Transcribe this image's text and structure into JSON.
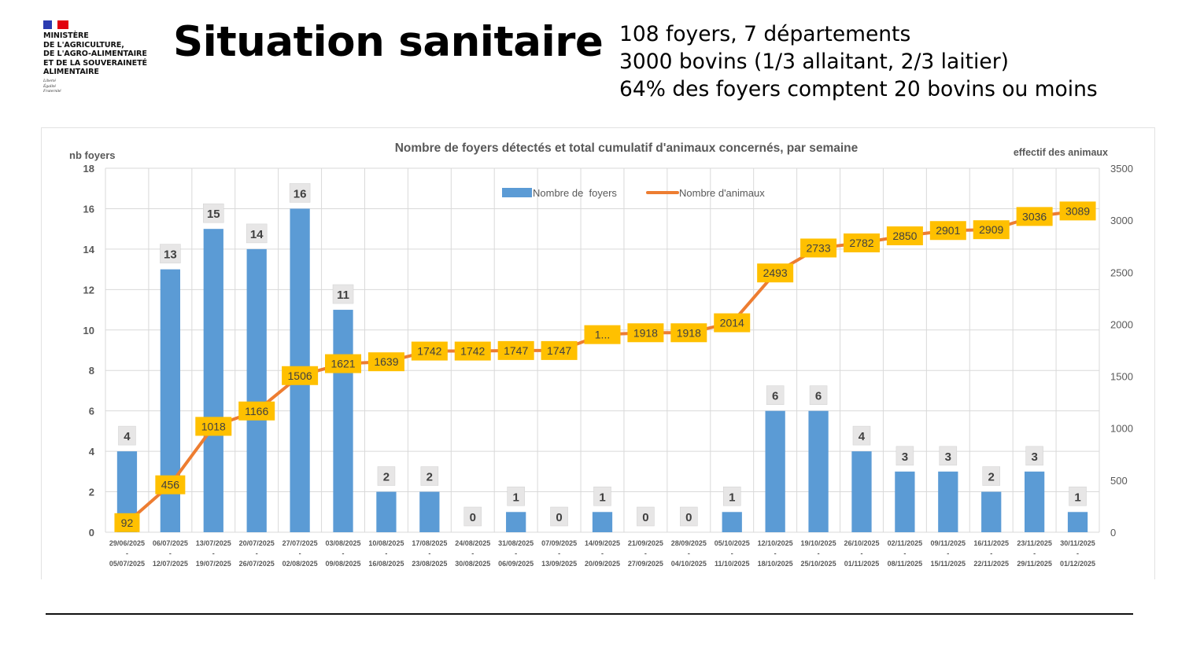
{
  "header": {
    "ministry_lines": [
      "MINISTÈRE",
      "DE L'AGRICULTURE,",
      "DE L'AGRO-ALIMENTAIRE",
      "ET DE LA SOUVERAINETÉ",
      "ALIMENTAIRE"
    ],
    "motto_lines": [
      "Liberté",
      "Égalité",
      "Fraternité"
    ],
    "title": "Situation sanitaire",
    "facts": [
      "108 foyers, 7 départements",
      "3000 bovins (1/3 allaitant, 2/3 laitier)",
      "64% des foyers comptent 20 bovins ou moins"
    ]
  },
  "colors": {
    "bar": "#5b9bd5",
    "line": "#ed7d31",
    "line_label_bg": "#ffc000",
    "bar_label_bg": "#e7e6e6",
    "grid": "#d9d9d9",
    "axis_text": "#595959"
  },
  "chart_data": {
    "type": "bar",
    "title": "Nombre de foyers détectés et total cumulatif d'animaux concernés, par semaine",
    "ylabel": "nb foyers",
    "y2label": "effectif des animaux",
    "ylim": [
      0,
      18
    ],
    "y2lim": [
      0,
      3500
    ],
    "yticks": [
      0,
      2,
      4,
      6,
      8,
      10,
      12,
      14,
      16,
      18
    ],
    "y2ticks": [
      0,
      500,
      1000,
      1500,
      2000,
      2500,
      3000,
      3500
    ],
    "grid": true,
    "legend_position": "top-center",
    "categories": [
      [
        "29/06/2025",
        "05/07/2025"
      ],
      [
        "06/07/2025",
        "12/07/2025"
      ],
      [
        "13/07/2025",
        "19/07/2025"
      ],
      [
        "20/07/2025",
        "26/07/2025"
      ],
      [
        "27/07/2025",
        "02/08/2025"
      ],
      [
        "03/08/2025",
        "09/08/2025"
      ],
      [
        "10/08/2025",
        "16/08/2025"
      ],
      [
        "17/08/2025",
        "23/08/2025"
      ],
      [
        "24/08/2025",
        "30/08/2025"
      ],
      [
        "31/08/2025",
        "06/09/2025"
      ],
      [
        "07/09/2025",
        "13/09/2025"
      ],
      [
        "14/09/2025",
        "20/09/2025"
      ],
      [
        "21/09/2025",
        "27/09/2025"
      ],
      [
        "28/09/2025",
        "04/10/2025"
      ],
      [
        "05/10/2025",
        "11/10/2025"
      ],
      [
        "12/10/2025",
        "18/10/2025"
      ],
      [
        "19/10/2025",
        "25/10/2025"
      ],
      [
        "26/10/2025",
        "01/11/2025"
      ],
      [
        "02/11/2025",
        "08/11/2025"
      ],
      [
        "09/11/2025",
        "15/11/2025"
      ],
      [
        "16/11/2025",
        "22/11/2025"
      ],
      [
        "23/11/2025",
        "29/11/2025"
      ],
      [
        "30/11/2025",
        "01/12/2025"
      ]
    ],
    "category_separator": "-",
    "series": [
      {
        "name": "Nombre de  foyers",
        "type": "bar",
        "axis": "left",
        "values": [
          4,
          13,
          15,
          14,
          16,
          11,
          2,
          2,
          0,
          1,
          0,
          1,
          0,
          0,
          1,
          6,
          6,
          4,
          3,
          3,
          2,
          3,
          1
        ]
      },
      {
        "name": "Nombre d'animaux",
        "type": "line",
        "axis": "right",
        "values": [
          92,
          456,
          1018,
          1166,
          1506,
          1621,
          1639,
          1742,
          1742,
          1747,
          1747,
          1900,
          1918,
          1918,
          2014,
          2493,
          2733,
          2782,
          2850,
          2901,
          2909,
          3036,
          3089
        ],
        "labels": [
          "92",
          "456",
          "1018",
          "1166",
          "1506",
          "1621",
          "1639",
          "1742",
          "1742",
          "1747",
          "1747",
          "1...",
          "1918",
          "1918",
          "2014",
          "2493",
          "2733",
          "2782",
          "2850",
          "2901",
          "2909",
          "3036",
          "3089"
        ]
      }
    ]
  }
}
